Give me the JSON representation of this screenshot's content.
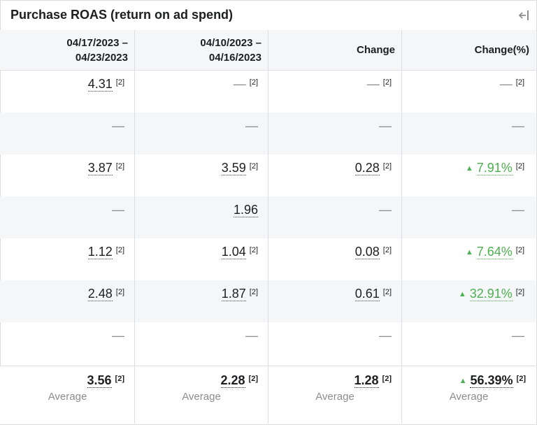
{
  "title": "Purchase ROAS (return on ad spend)",
  "icons": {
    "collapse": "collapse-left-icon"
  },
  "columns": [
    {
      "label": "04/17/2023 –\n04/23/2023"
    },
    {
      "label": "04/10/2023 –\n04/16/2023"
    },
    {
      "label": "Change"
    },
    {
      "label": "Change(%)"
    }
  ],
  "rows": [
    [
      "4.31",
      "—",
      "—",
      "—"
    ],
    [
      "—",
      "—",
      "—",
      "—"
    ],
    [
      "3.87",
      "3.59",
      "0.28",
      "7.91%"
    ],
    [
      "—",
      "1.96",
      "—",
      "—"
    ],
    [
      "1.12",
      "1.04",
      "0.08",
      "7.64%"
    ],
    [
      "2.48",
      "1.87",
      "0.61",
      "32.91%"
    ],
    [
      "—",
      "—",
      "—",
      "—"
    ]
  ],
  "footnote": "[2]",
  "footer": {
    "values": [
      "3.56",
      "2.28",
      "1.28",
      "56.39%"
    ],
    "label": "Average"
  },
  "colors": {
    "positive": "#4caf50",
    "border": "#dadde1",
    "alt_row": "#f5f6f7"
  }
}
